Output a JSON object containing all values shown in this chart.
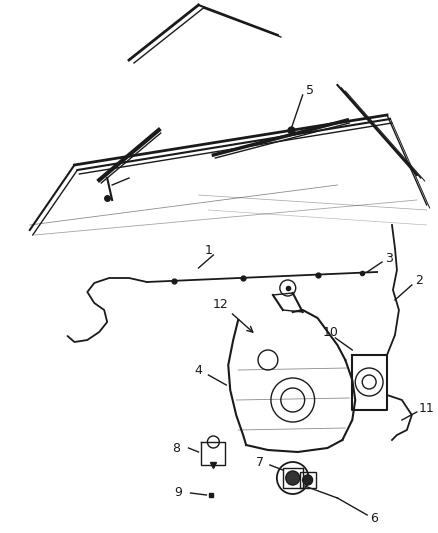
{
  "bg_color": "#ffffff",
  "line_color": "#1a1a1a",
  "label_color": "#1a1a1a",
  "fig_width": 4.38,
  "fig_height": 5.33,
  "dpi": 100
}
